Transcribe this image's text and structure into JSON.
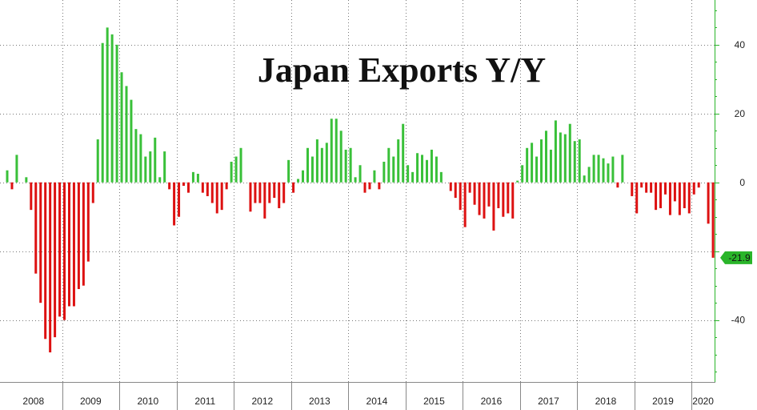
{
  "chart_data": {
    "type": "bar",
    "title": "Japan Exports Y/Y",
    "xlabel": "",
    "ylabel": "",
    "ylim": [
      -58,
      53
    ],
    "yticks": [
      -40,
      -20,
      0,
      20,
      40
    ],
    "grid": true,
    "years": [
      "2008",
      "2009",
      "2010",
      "2011",
      "2012",
      "2013",
      "2014",
      "2015",
      "2016",
      "2017",
      "2018",
      "2019",
      "2020"
    ],
    "year_start_months": [
      0,
      12,
      24,
      36,
      48,
      60,
      72,
      84,
      96,
      108,
      120,
      132,
      144
    ],
    "month_count": 150,
    "values": [
      3.5,
      -2.0,
      8.0,
      0.0,
      1.5,
      -8.0,
      -26.5,
      -35.0,
      -45.5,
      -49.4,
      -45.0,
      -39.0,
      -40.0,
      -36.0,
      -36.0,
      -31.0,
      -30.0,
      -23.0,
      -6.0,
      12.5,
      40.5,
      45.0,
      43.0,
      40.0,
      32.0,
      28.0,
      24.0,
      15.5,
      14.0,
      7.5,
      9.0,
      13.0,
      1.5,
      9.0,
      -2.0,
      -12.5,
      -10.0,
      -1.0,
      -3.0,
      3.0,
      2.5,
      -3.0,
      -4.0,
      -6.0,
      -9.0,
      -8.0,
      -2.0,
      6.0,
      7.5,
      10.0,
      0.0,
      -8.5,
      -6.0,
      -6.0,
      -10.5,
      -6.0,
      -4.5,
      -7.5,
      -6.0,
      6.5,
      -3.0,
      1.0,
      3.5,
      10.0,
      7.5,
      12.5,
      10.0,
      11.5,
      18.5,
      18.5,
      15.0,
      9.5,
      10.0,
      1.5,
      5.0,
      -3.0,
      -2.0,
      3.5,
      -2.0,
      6.0,
      10.0,
      7.5,
      12.5,
      17.0,
      5.0,
      3.0,
      8.5,
      8.0,
      6.5,
      9.5,
      7.5,
      3.0,
      0.0,
      -2.5,
      -4.5,
      -8.0,
      -13.0,
      -3.0,
      -6.5,
      -9.5,
      -10.5,
      -7.0,
      -14.0,
      -7.5,
      -10.0,
      -9.0,
      -10.5,
      0.5,
      5.0,
      10.0,
      11.5,
      7.5,
      12.5,
      15.0,
      9.5,
      18.0,
      14.5,
      14.0,
      17.0,
      12.0,
      12.5,
      2.0,
      4.5,
      8.0,
      8.0,
      7.0,
      5.5,
      7.5,
      -1.5,
      8.0,
      0.0,
      -4.0,
      -9.0,
      -1.5,
      -3.0,
      -3.0,
      -8.0,
      -7.5,
      -3.5,
      -9.5,
      -5.5,
      -9.5,
      -7.5,
      -9.0,
      -3.5,
      -1.5,
      0.0,
      -12.0,
      -21.9
    ],
    "last_value_label": "-21.9",
    "last_value": -21.9,
    "colors": {
      "positive": "#39c039",
      "negative": "#dd1111",
      "axis": "#2ab52a",
      "grid": "#777777",
      "callout": "#2ab52a"
    }
  }
}
